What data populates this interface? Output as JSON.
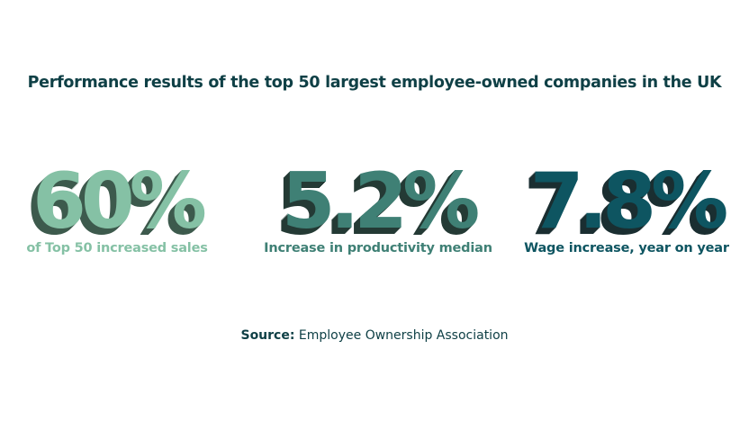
{
  "title": "Performance results of the top 50 largest employee-owned companies in the UK",
  "stats": [
    {
      "value": "60%",
      "label": "of Top 50 increased sales",
      "color": "#85c1a5",
      "shadow": "#3d5a4d"
    },
    {
      "value": "5.2%",
      "label": "Increase in productivity median",
      "color": "#3f8075",
      "shadow": "#243a35"
    },
    {
      "value": "7.8%",
      "label": "Wage increase, year on year",
      "color": "#0e5561",
      "shadow": "#1a2e31"
    }
  ],
  "source": {
    "label": "Source:",
    "text": " Employee Ownership Association"
  }
}
